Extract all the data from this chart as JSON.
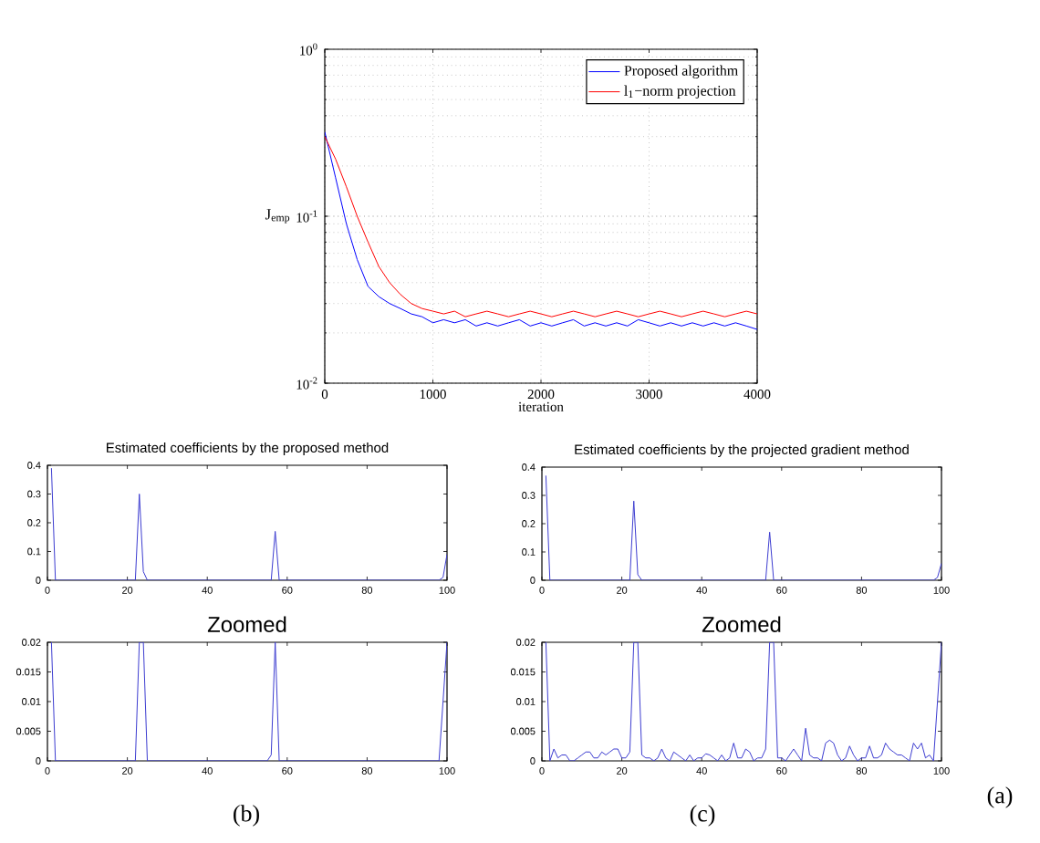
{
  "chart_data": [
    {
      "type": "line",
      "xlabel": "iteration",
      "ylabel": "J$_{emp}$",
      "xlim": [
        0,
        4000
      ],
      "ylim": [
        0.01,
        1
      ],
      "xticks": [
        0,
        1000,
        2000,
        3000,
        4000
      ],
      "yticks": [
        {
          "value": 0.01,
          "label": "10$^{-2}$"
        },
        {
          "value": 0.1,
          "label": "10$^{-1}$"
        },
        {
          "value": 1,
          "label": "10$^{0}$"
        }
      ],
      "log": "y",
      "grid": true,
      "legend": "top right",
      "annotations": [
        "(a)"
      ],
      "series": [
        {
          "name": "Proposed algorithm",
          "color": "#0000ff",
          "x": [
            0,
            100,
            200,
            300,
            400,
            500,
            600,
            700,
            800,
            900,
            1000,
            1100,
            1200,
            1300,
            1400,
            1500,
            1600,
            1700,
            1800,
            1900,
            2000,
            2100,
            2200,
            2300,
            2400,
            2500,
            2600,
            2700,
            2800,
            2900,
            3000,
            3100,
            3200,
            3300,
            3400,
            3500,
            3600,
            3700,
            3800,
            3900,
            4000
          ],
          "values": [
            0.32,
            0.17,
            0.09,
            0.055,
            0.038,
            0.033,
            0.03,
            0.028,
            0.026,
            0.025,
            0.023,
            0.024,
            0.023,
            0.024,
            0.022,
            0.023,
            0.022,
            0.023,
            0.024,
            0.022,
            0.023,
            0.022,
            0.023,
            0.024,
            0.022,
            0.023,
            0.022,
            0.023,
            0.022,
            0.024,
            0.023,
            0.022,
            0.023,
            0.022,
            0.023,
            0.022,
            0.023,
            0.022,
            0.023,
            0.022,
            0.021
          ]
        },
        {
          "name": "l$_{1}$−norm projection",
          "color": "#ff0000",
          "x": [
            0,
            100,
            200,
            300,
            400,
            500,
            600,
            700,
            800,
            900,
            1000,
            1100,
            1200,
            1300,
            1400,
            1500,
            1600,
            1700,
            1800,
            1900,
            2000,
            2100,
            2200,
            2300,
            2400,
            2500,
            2600,
            2700,
            2800,
            2900,
            3000,
            3100,
            3200,
            3300,
            3400,
            3500,
            3600,
            3700,
            3800,
            3900,
            4000
          ],
          "values": [
            0.3,
            0.22,
            0.15,
            0.1,
            0.07,
            0.05,
            0.04,
            0.034,
            0.03,
            0.028,
            0.027,
            0.026,
            0.027,
            0.025,
            0.026,
            0.027,
            0.026,
            0.025,
            0.026,
            0.027,
            0.026,
            0.025,
            0.026,
            0.027,
            0.026,
            0.025,
            0.026,
            0.027,
            0.026,
            0.025,
            0.026,
            0.027,
            0.026,
            0.025,
            0.026,
            0.027,
            0.026,
            0.025,
            0.026,
            0.027,
            0.026
          ]
        }
      ]
    },
    {
      "type": "line",
      "title": "Estimated coefficients by the proposed method",
      "xlim": [
        0,
        100
      ],
      "ylim": [
        0,
        0.4
      ],
      "xticks": [
        0,
        20,
        40,
        60,
        80,
        100
      ],
      "yticks": [
        0,
        0.1,
        0.2,
        0.3,
        0.4
      ],
      "series": [
        {
          "color": "#3c3cd0",
          "x": [
            1,
            2,
            22,
            23,
            24,
            25,
            56,
            57,
            58,
            98,
            99,
            100
          ],
          "values": [
            0.39,
            0,
            0,
            0.3,
            0.03,
            0,
            0,
            0.17,
            0,
            0,
            0.01,
            0.09
          ]
        }
      ]
    },
    {
      "type": "line",
      "title": "Estimated coefficients by the projected gradient method",
      "xlim": [
        0,
        100
      ],
      "ylim": [
        0,
        0.4
      ],
      "xticks": [
        0,
        20,
        40,
        60,
        80,
        100
      ],
      "yticks": [
        0,
        0.1,
        0.2,
        0.3,
        0.4
      ],
      "series": [
        {
          "color": "#3c3cd0",
          "x": [
            1,
            2,
            22,
            23,
            24,
            25,
            56,
            57,
            58,
            98,
            99,
            100
          ],
          "values": [
            0.37,
            0,
            0,
            0.28,
            0.02,
            0,
            0,
            0.17,
            0,
            0,
            0.01,
            0.06
          ]
        }
      ]
    },
    {
      "type": "line",
      "title": "Zoomed",
      "xlim": [
        0,
        100
      ],
      "ylim": [
        0,
        0.02
      ],
      "xticks": [
        0,
        20,
        40,
        60,
        80,
        100
      ],
      "yticks": [
        0,
        0.005,
        0.01,
        0.015,
        0.02
      ],
      "annotations": [
        "(b)"
      ],
      "series": [
        {
          "color": "#3c3cd0",
          "x": [
            1,
            2,
            22,
            23,
            24,
            25,
            55,
            56,
            57,
            58,
            98,
            99,
            100
          ],
          "values": [
            0.02,
            0,
            0,
            0.02,
            0.02,
            0,
            0,
            0.001,
            0.02,
            0,
            0,
            0.01,
            0.02
          ]
        }
      ]
    },
    {
      "type": "line",
      "title": "Zoomed",
      "xlim": [
        0,
        100
      ],
      "ylim": [
        0,
        0.02
      ],
      "xticks": [
        0,
        20,
        40,
        60,
        80,
        100
      ],
      "yticks": [
        0,
        0.005,
        0.01,
        0.015,
        0.02
      ],
      "annotations": [
        "(c)"
      ],
      "series": [
        {
          "color": "#3c3cd0",
          "x": [
            1,
            2,
            3,
            4,
            5,
            6,
            7,
            8,
            9,
            10,
            11,
            12,
            13,
            14,
            15,
            16,
            17,
            18,
            19,
            20,
            21,
            22,
            23,
            24,
            25,
            26,
            27,
            28,
            29,
            30,
            31,
            32,
            33,
            34,
            35,
            36,
            37,
            38,
            39,
            40,
            41,
            42,
            43,
            44,
            45,
            46,
            47,
            48,
            49,
            50,
            51,
            52,
            53,
            54,
            55,
            56,
            57,
            58,
            59,
            60,
            61,
            62,
            63,
            64,
            65,
            66,
            67,
            68,
            69,
            70,
            71,
            72,
            73,
            74,
            75,
            76,
            77,
            78,
            79,
            80,
            81,
            82,
            83,
            84,
            85,
            86,
            87,
            88,
            89,
            90,
            91,
            92,
            93,
            94,
            95,
            96,
            97,
            98,
            99,
            100
          ],
          "values": [
            0.02,
            0,
            0.002,
            0.0005,
            0.001,
            0.001,
            0,
            0,
            0.0005,
            0.001,
            0.0015,
            0.0015,
            0.0005,
            0.0005,
            0.0015,
            0.001,
            0.0015,
            0.002,
            0.002,
            0.0005,
            0.0005,
            0.0015,
            0.02,
            0.02,
            0.001,
            0.0005,
            0.0005,
            0,
            0.0005,
            0.002,
            0.0005,
            0,
            0.0015,
            0.001,
            0.0005,
            0,
            0.001,
            0,
            0.0005,
            0.0005,
            0.0012,
            0.001,
            0.0005,
            0,
            0.001,
            0,
            0.0005,
            0.003,
            0.0005,
            0.0005,
            0.002,
            0.0015,
            0,
            0.0005,
            0.0005,
            0.002,
            0.02,
            0.02,
            0.0005,
            0.0005,
            0,
            0.001,
            0.002,
            0.001,
            0,
            0.0055,
            0.001,
            0.0005,
            0.0005,
            0,
            0.003,
            0.0035,
            0.003,
            0.001,
            0,
            0.0005,
            0.0025,
            0.001,
            0,
            0.0005,
            0.0005,
            0.0025,
            0.0005,
            0.0005,
            0.001,
            0.003,
            0.002,
            0.0015,
            0.001,
            0.001,
            0.0005,
            0,
            0.003,
            0.002,
            0.003,
            0.0005,
            0.001,
            0,
            0.01,
            0.02
          ]
        }
      ]
    }
  ]
}
